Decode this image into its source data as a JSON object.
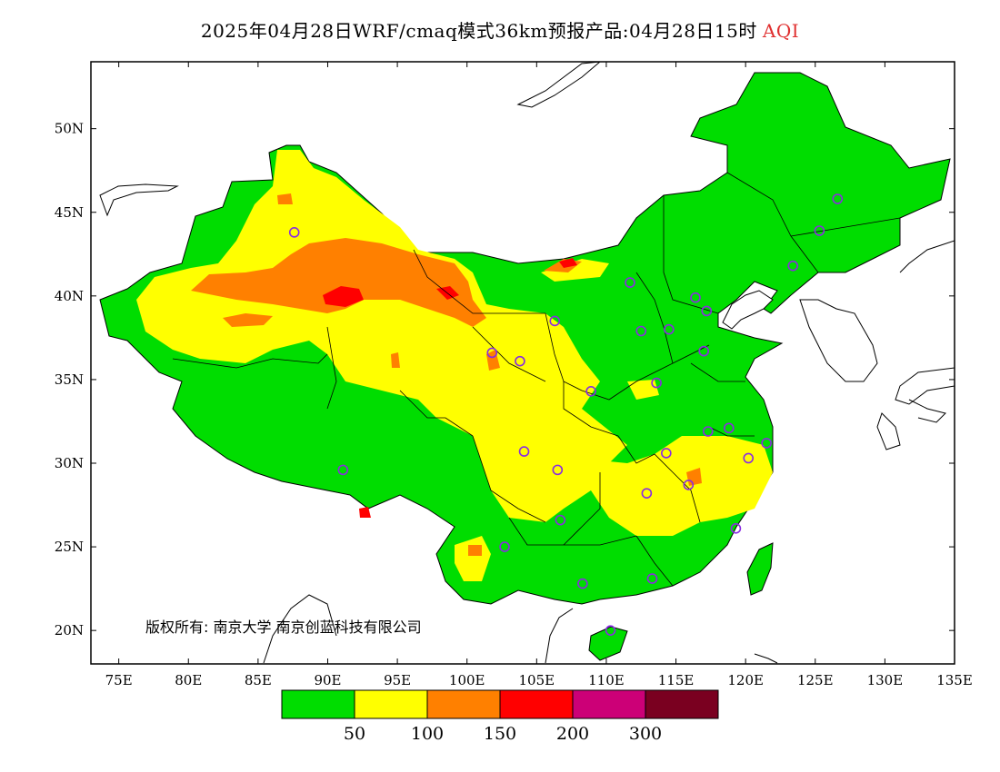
{
  "title": {
    "main": "2025年04月28日WRF/cmaq模式36km预报产品:04月28日15时",
    "variable": "AQI"
  },
  "axes": {
    "lat_labels": [
      "20N",
      "25N",
      "30N",
      "35N",
      "40N",
      "45N",
      "50N"
    ],
    "lat_values": [
      20,
      25,
      30,
      35,
      40,
      45,
      50
    ],
    "lon_labels": [
      "75E",
      "80E",
      "85E",
      "90E",
      "95E",
      "100E",
      "105E",
      "110E",
      "115E",
      "120E",
      "125E",
      "130E",
      "135E"
    ],
    "lon_values": [
      75,
      80,
      85,
      90,
      95,
      100,
      105,
      110,
      115,
      120,
      125,
      130,
      135
    ],
    "lon_range": [
      73,
      135
    ],
    "lat_range": [
      18,
      54
    ]
  },
  "copyright": "版权所有: 南京大学  南京创蓝科技有限公司",
  "colorbar": {
    "colors": [
      "#00dd00",
      "#ffff00",
      "#ff8000",
      "#ff0000",
      "#cc0077",
      "#7a0020"
    ],
    "labels": [
      "50",
      "100",
      "150",
      "200",
      "300"
    ]
  },
  "stations": [
    [
      87.6,
      43.8
    ],
    [
      91.1,
      29.6
    ],
    [
      101.8,
      36.6
    ],
    [
      103.8,
      36.1
    ],
    [
      106.3,
      38.5
    ],
    [
      111.7,
      40.8
    ],
    [
      116.4,
      39.9
    ],
    [
      117.2,
      39.1
    ],
    [
      114.5,
      38.0
    ],
    [
      112.5,
      37.9
    ],
    [
      117.0,
      36.7
    ],
    [
      113.6,
      34.8
    ],
    [
      108.9,
      34.3
    ],
    [
      104.1,
      30.7
    ],
    [
      106.5,
      29.6
    ],
    [
      106.7,
      26.6
    ],
    [
      102.7,
      25.0
    ],
    [
      108.3,
      22.8
    ],
    [
      113.3,
      23.1
    ],
    [
      110.3,
      20.0
    ],
    [
      112.9,
      28.2
    ],
    [
      114.3,
      30.6
    ],
    [
      115.9,
      28.7
    ],
    [
      117.3,
      31.9
    ],
    [
      118.8,
      32.1
    ],
    [
      120.2,
      30.3
    ],
    [
      121.5,
      31.2
    ],
    [
      119.3,
      26.1
    ],
    [
      123.4,
      41.8
    ],
    [
      125.3,
      43.9
    ],
    [
      126.6,
      45.8
    ]
  ]
}
